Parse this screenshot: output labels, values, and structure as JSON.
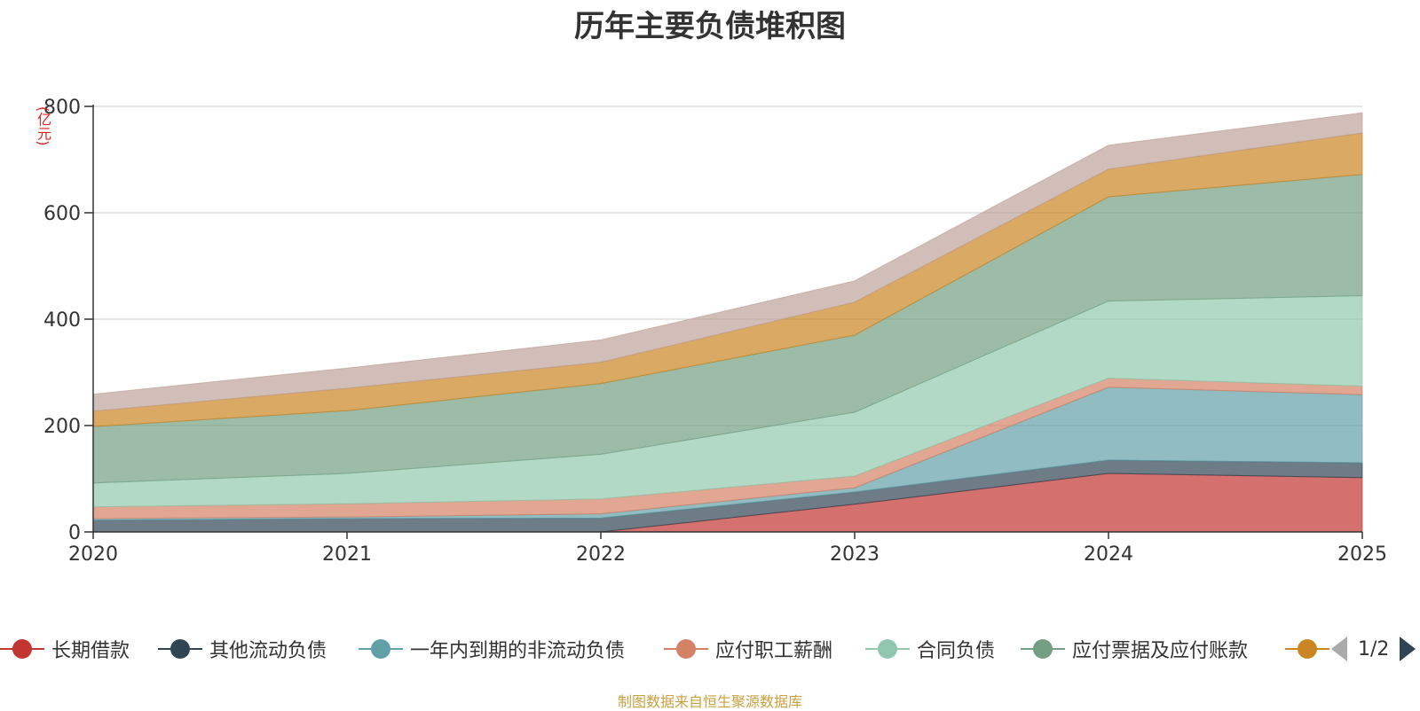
{
  "chart_data": {
    "type": "area",
    "stacked": true,
    "title": "历年主要负债堆积图",
    "unit_label": "(亿元)",
    "x": [
      "2020",
      "2021",
      "2022",
      "2023",
      "2024",
      "2025"
    ],
    "ylim": [
      0,
      800
    ],
    "yticks": [
      "0",
      "200",
      "400",
      "600",
      "800"
    ],
    "grid": true,
    "series": [
      {
        "name": "长期借款",
        "color": "#c23531",
        "values": [
          0,
          0,
          0,
          52,
          110,
          102
        ],
        "legend_visible": true
      },
      {
        "name": "其他流动负债",
        "color": "#2f4554",
        "values": [
          22,
          25,
          26,
          23,
          25,
          28
        ],
        "legend_visible": true
      },
      {
        "name": "一年内到期的非流动负债",
        "color": "#61a0a8",
        "values": [
          3,
          3,
          8,
          8,
          137,
          128
        ],
        "legend_visible": true
      },
      {
        "name": "应付职工薪酬",
        "color": "#d48265",
        "values": [
          22,
          25,
          28,
          22,
          17,
          16
        ],
        "legend_visible": true
      },
      {
        "name": "合同负债",
        "color": "#91c7ae",
        "values": [
          45,
          57,
          84,
          120,
          145,
          170
        ],
        "legend_visible": true
      },
      {
        "name": "应付票据及应付账款",
        "color": "#749f83",
        "values": [
          106,
          118,
          133,
          145,
          196,
          228
        ],
        "legend_visible": true
      },
      {
        "name": "",
        "color": "#ca8622",
        "values": [
          29,
          42,
          40,
          62,
          52,
          78
        ],
        "legend_visible": true
      },
      {
        "name": "",
        "color": "#bda29a",
        "values": [
          32,
          38,
          42,
          40,
          45,
          38
        ],
        "legend_visible": false
      }
    ],
    "legend_page": "1/2",
    "source_note": "制图数据来自恒生聚源数据库"
  }
}
